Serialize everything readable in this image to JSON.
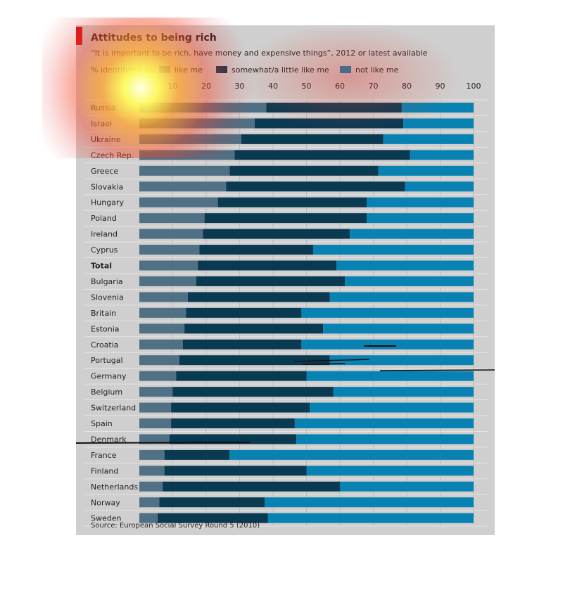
{
  "chart_data": {
    "type": "bar",
    "orientation": "horizontal",
    "stacked": true,
    "title": "Attitudes to being rich",
    "subtitle": "“It is important to be rich, have money and expensive things”, 2012 or latest available",
    "legend_lead": "% identifying as:",
    "source": "Source: European Social Survey Round 5 (2010)",
    "xlim": [
      0,
      100
    ],
    "xticks": [
      "10",
      "20",
      "30",
      "40",
      "50",
      "60",
      "70",
      "80",
      "90",
      "100"
    ],
    "grid": true,
    "legend_placement": "top",
    "categories": [
      "Russia",
      "Israel",
      "Ukraine",
      "Czech Rep.",
      "Greece",
      "Slovakia",
      "Hungary",
      "Poland",
      "Ireland",
      "Cyprus",
      "Total",
      "Bulgaria",
      "Slovenia",
      "Britain",
      "Estonia",
      "Croatia",
      "Portugal",
      "Germany",
      "Belgium",
      "Switzerland",
      "Spain",
      "Denmark",
      "France",
      "Finland",
      "Netherlands",
      "Norway",
      "Sweden"
    ],
    "bold_categories": [
      "Total"
    ],
    "series": [
      {
        "name": "like me",
        "color": "#4f7085",
        "values": [
          38,
          34.5,
          30.5,
          28.5,
          27,
          26,
          23.5,
          19.5,
          19,
          18,
          17.5,
          17,
          14.5,
          14,
          13.5,
          13,
          12,
          11,
          10,
          9.5,
          9.5,
          9,
          7.5,
          7.5,
          7,
          6,
          5.5
        ]
      },
      {
        "name": "somewhat/a little like me",
        "color": "#0a3952",
        "values": [
          40.5,
          44.5,
          42.5,
          52.5,
          44.5,
          53.5,
          44.5,
          48.5,
          44,
          34,
          41.5,
          44.5,
          42.5,
          34.5,
          41.5,
          35.5,
          45,
          39,
          48,
          41.5,
          37,
          38,
          19.5,
          42.5,
          53,
          31.5,
          33
        ]
      },
      {
        "name": "not like me",
        "color": "#0882b2",
        "values": [
          21.5,
          21,
          27,
          19,
          28.5,
          20.5,
          32,
          32,
          37,
          48,
          41,
          38.5,
          43,
          51.5,
          45,
          51.5,
          43,
          50,
          42,
          49,
          53.5,
          53,
          73,
          50,
          40,
          62.5,
          61.5
        ]
      }
    ]
  }
}
